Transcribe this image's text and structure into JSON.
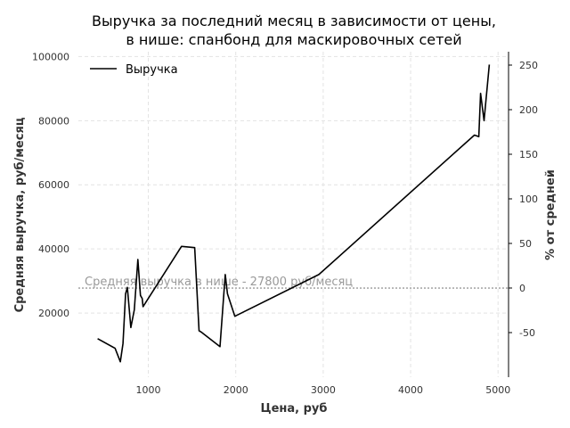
{
  "chart_data": {
    "type": "line",
    "title": "Выручка за последний месяц в зависимости от цены,",
    "title_line2": "в нише: спанбонд для маскировочных сетей",
    "xlabel": "Цена, руб",
    "ylabel": "Средняя выручка, руб/месяц",
    "ylabel_right": "% от средней",
    "xlim": [
      200,
      5120
    ],
    "ylim": [
      0,
      101500
    ],
    "ylim_right": [
      -100,
      265
    ],
    "x_ticks": [
      1000,
      2000,
      3000,
      4000,
      5000
    ],
    "y_ticks": [
      20000,
      40000,
      60000,
      80000,
      100000
    ],
    "y_ticks_right": [
      -50,
      0,
      50,
      100,
      150,
      200,
      250
    ],
    "grid": true,
    "legend_position": "top-left",
    "series": [
      {
        "name": "Выручка",
        "color": "#000000",
        "x": [
          420,
          620,
          680,
          710,
          740,
          760,
          800,
          840,
          880,
          910,
          930,
          940,
          1380,
          1530,
          1580,
          1610,
          1820,
          1880,
          1905,
          1990,
          2950,
          4730,
          4780,
          4800,
          4840,
          4900
        ],
        "y": [
          12000,
          9000,
          4800,
          10500,
          26000,
          28000,
          15500,
          21000,
          36700,
          25500,
          24500,
          22000,
          40800,
          40400,
          14500,
          14000,
          9500,
          32000,
          26000,
          19000,
          32000,
          75500,
          75000,
          88500,
          80000,
          97500
        ]
      }
    ],
    "average": {
      "value": 27800,
      "label": "Средняя выручка в нише - 27800 руб/месяц",
      "color": "#9a9a9a"
    }
  }
}
